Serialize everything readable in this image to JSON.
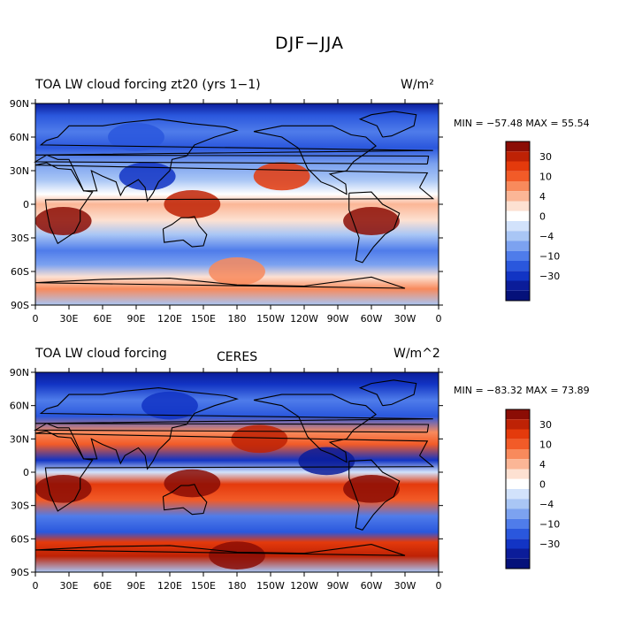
{
  "figure": {
    "title": "DJF−JJA",
    "x_tick_labels": [
      "0",
      "30E",
      "60E",
      "90E",
      "120E",
      "150E",
      "180",
      "150W",
      "120W",
      "90W",
      "60W",
      "30W",
      "0"
    ],
    "y_tick_labels": [
      "90N",
      "60N",
      "30N",
      "0",
      "30S",
      "60S",
      "90S"
    ],
    "colorbar_labels": [
      "30",
      "10",
      "4",
      "0",
      "−4",
      "−10",
      "−30"
    ],
    "colors": {
      "levels": [
        "#8b0d05",
        "#be2205",
        "#e43a0c",
        "#f25b28",
        "#f88a5c",
        "#fbb696",
        "#fde1d2",
        "#ffffff",
        "#d2e2fb",
        "#a9c6f5",
        "#7ca2f0",
        "#4f7cea",
        "#2a57dd",
        "#1234c4",
        "#0b1c99",
        "#05117a"
      ]
    }
  },
  "panels": [
    {
      "title_left": "TOA LW cloud forcing zt20 (yrs 1−1)",
      "title_center": "",
      "units": "W/m²",
      "min_max": "MIN = −57.48 MAX =  55.54"
    },
    {
      "title_left": "TOA LW cloud forcing",
      "title_center": "CERES",
      "units": "W/m^2",
      "min_max": "MIN = −83.32 MAX =  73.89"
    }
  ],
  "chart_data": [
    {
      "type": "heatmap",
      "title": "TOA LW cloud forcing zt20 (yrs 1−1)",
      "units": "W/m²",
      "min": -57.48,
      "max": 55.54,
      "x_range": [
        0,
        360
      ],
      "y_range": [
        -90,
        90
      ],
      "contour_levels": [
        -30,
        -20,
        -10,
        -6,
        -4,
        -2,
        -1,
        0,
        1,
        2,
        4,
        6,
        10,
        20,
        30
      ],
      "features": [
        {
          "lon": 180,
          "lat": -60,
          "value": 4
        },
        {
          "lon": 25,
          "lat": -15,
          "value": 30
        },
        {
          "lon": 300,
          "lat": -15,
          "value": 30
        },
        {
          "lon": 140,
          "lat": 0,
          "value": 20
        },
        {
          "lon": 220,
          "lat": 25,
          "value": 10
        },
        {
          "lon": 100,
          "lat": 25,
          "value": -20
        },
        {
          "lon": 90,
          "lat": 60,
          "value": -10
        }
      ]
    },
    {
      "type": "heatmap",
      "title": "TOA LW cloud forcing CERES",
      "units": "W/m^2",
      "min": -83.32,
      "max": 73.89,
      "x_range": [
        0,
        360
      ],
      "y_range": [
        -90,
        90
      ],
      "contour_levels": [
        -30,
        -20,
        -10,
        -6,
        -4,
        -2,
        -1,
        0,
        1,
        2,
        4,
        6,
        10,
        20,
        30
      ],
      "features": [
        {
          "lon": 180,
          "lat": -75,
          "value": 30
        },
        {
          "lon": 25,
          "lat": -15,
          "value": 30
        },
        {
          "lon": 300,
          "lat": -15,
          "value": 30
        },
        {
          "lon": 140,
          "lat": -10,
          "value": 30
        },
        {
          "lon": 200,
          "lat": 30,
          "value": 20
        },
        {
          "lon": 260,
          "lat": 10,
          "value": -30
        },
        {
          "lon": 120,
          "lat": 60,
          "value": -20
        }
      ]
    }
  ]
}
